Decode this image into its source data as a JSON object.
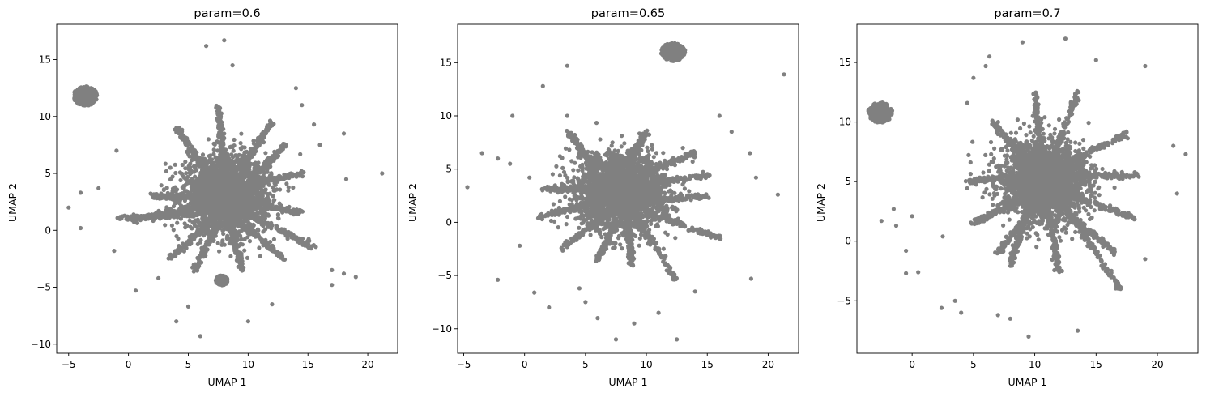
{
  "chart_data": [
    {
      "type": "scatter",
      "title": "param=0.6",
      "xlabel": "UMAP 1",
      "ylabel": "UMAP 2",
      "xlim": [
        -6,
        22.5
      ],
      "ylim": [
        -10.8,
        18.1
      ],
      "xticks": [
        -5,
        0,
        5,
        10,
        15,
        20
      ],
      "yticks": [
        -10,
        -5,
        0,
        5,
        10,
        15
      ],
      "marker_color": "#808080",
      "grid": false,
      "legend": "none",
      "structure": {
        "core": {
          "center": [
            8.2,
            3.2
          ],
          "spread": [
            1.7,
            1.6
          ]
        },
        "islands": [
          {
            "center": [
              -3.6,
              11.8
            ],
            "radius": 1.0
          },
          {
            "center": [
              7.8,
              -4.4
            ],
            "radius": 0.5
          }
        ],
        "arms": [
          {
            "from": [
              9.5,
              4.0
            ],
            "to": [
              14.5,
              5.0
            ]
          },
          {
            "from": [
              7.0,
              4.5
            ],
            "to": [
              4.0,
              9.0
            ]
          },
          {
            "from": [
              6.0,
              2.0
            ],
            "to": [
              0.5,
              1.0
            ]
          },
          {
            "from": [
              9.0,
              1.0
            ],
            "to": [
              13.0,
              -2.5
            ]
          },
          {
            "from": [
              10.0,
              2.5
            ],
            "to": [
              14.5,
              1.5
            ]
          },
          {
            "from": [
              7.0,
              1.0
            ],
            "to": [
              3.5,
              -2.5
            ]
          },
          {
            "from": [
              8.0,
              5.5
            ],
            "to": [
              7.5,
              11.0
            ]
          },
          {
            "from": [
              9.5,
              5.5
            ],
            "to": [
              12.0,
              9.5
            ]
          },
          {
            "from": [
              6.5,
              1.5
            ],
            "to": [
              -1.0,
              1.0
            ]
          },
          {
            "from": [
              10.0,
              1.5
            ],
            "to": [
              15.5,
              -1.5
            ]
          },
          {
            "from": [
              8.5,
              0.5
            ],
            "to": [
              9.5,
              -3.5
            ]
          },
          {
            "from": [
              7.5,
              0.5
            ],
            "to": [
              5.5,
              -3.5
            ]
          },
          {
            "from": [
              6.5,
              3.0
            ],
            "to": [
              2.0,
              3.0
            ]
          },
          {
            "from": [
              9.5,
              3.5
            ],
            "to": [
              13.0,
              7.5
            ]
          }
        ],
        "outliers": [
          [
            -5,
            2
          ],
          [
            -4,
            3.3
          ],
          [
            -2.5,
            3.7
          ],
          [
            -4,
            0.2
          ],
          [
            -1,
            7
          ],
          [
            -1.2,
            -1.8
          ],
          [
            0.6,
            -5.3
          ],
          [
            2.5,
            -4.2
          ],
          [
            3.5,
            5.5
          ],
          [
            4,
            -8
          ],
          [
            5,
            -6.7
          ],
          [
            6,
            -9.3
          ],
          [
            6.5,
            16.2
          ],
          [
            8,
            16.7
          ],
          [
            8.7,
            14.5
          ],
          [
            10,
            -8
          ],
          [
            12,
            -6.5
          ],
          [
            14,
            12.5
          ],
          [
            14.5,
            11
          ],
          [
            15.5,
            9.3
          ],
          [
            16,
            7.5
          ],
          [
            18,
            8.5
          ],
          [
            18.2,
            4.5
          ],
          [
            17,
            -3.5
          ],
          [
            17,
            -4.8
          ],
          [
            18,
            -3.8
          ],
          [
            19,
            -4.1
          ],
          [
            21.2,
            5
          ]
        ]
      }
    },
    {
      "type": "scatter",
      "title": "param=0.65",
      "xlabel": "UMAP 1",
      "ylabel": "UMAP 2",
      "xlim": [
        -5.5,
        22.5
      ],
      "ylim": [
        -12.3,
        18.6
      ],
      "xticks": [
        -5,
        0,
        5,
        10,
        15,
        20
      ],
      "yticks": [
        -10,
        -5,
        0,
        5,
        10,
        15
      ],
      "marker_color": "#808080",
      "grid": false,
      "legend": "none",
      "structure": {
        "core": {
          "center": [
            8.0,
            2.8
          ],
          "spread": [
            1.8,
            1.7
          ]
        },
        "islands": [
          {
            "center": [
              12.2,
              16.0
            ],
            "radius": 1.0
          }
        ],
        "arms": [
          {
            "from": [
              6.0,
              3.0
            ],
            "to": [
              1.5,
              3.2
            ]
          },
          {
            "from": [
              9.5,
              4.5
            ],
            "to": [
              14.0,
              6.5
            ]
          },
          {
            "from": [
              7.0,
              1.0
            ],
            "to": [
              3.0,
              -2.5
            ]
          },
          {
            "from": [
              9.0,
              1.0
            ],
            "to": [
              12.5,
              -5.5
            ]
          },
          {
            "from": [
              6.0,
              5.0
            ],
            "to": [
              3.5,
              8.5
            ]
          },
          {
            "from": [
              8.5,
              5.5
            ],
            "to": [
              10.0,
              8.5
            ]
          },
          {
            "from": [
              10.0,
              2.0
            ],
            "to": [
              15.0,
              2.5
            ]
          },
          {
            "from": [
              7.5,
              0.0
            ],
            "to": [
              6.0,
              -3.5
            ]
          },
          {
            "from": [
              8.5,
              0.5
            ],
            "to": [
              8.8,
              -4.0
            ]
          },
          {
            "from": [
              6.5,
              2.0
            ],
            "to": [
              1.0,
              0.5
            ]
          },
          {
            "from": [
              10.0,
              1.0
            ],
            "to": [
              16.0,
              -1.5
            ]
          },
          {
            "from": [
              9.5,
              3.5
            ],
            "to": [
              15.5,
              4.5
            ]
          },
          {
            "from": [
              7.0,
              5.0
            ],
            "to": [
              4.5,
              6.5
            ]
          }
        ],
        "outliers": [
          [
            -4.7,
            3.3
          ],
          [
            -3.5,
            6.5
          ],
          [
            -2.2,
            6
          ],
          [
            -2.2,
            -5.4
          ],
          [
            -1,
            10
          ],
          [
            -1.2,
            5.5
          ],
          [
            0.4,
            4.2
          ],
          [
            -0.4,
            -2.2
          ],
          [
            1.5,
            12.8
          ],
          [
            0.8,
            -6.6
          ],
          [
            2,
            -8
          ],
          [
            3.5,
            14.7
          ],
          [
            3.5,
            10
          ],
          [
            4.5,
            -6.2
          ],
          [
            5,
            -7.5
          ],
          [
            6,
            -9
          ],
          [
            7.5,
            -11
          ],
          [
            9,
            -9.5
          ],
          [
            11,
            -8.5
          ],
          [
            12.5,
            -11
          ],
          [
            14,
            -6.5
          ],
          [
            16,
            10
          ],
          [
            17,
            8.5
          ],
          [
            18.5,
            6.5
          ],
          [
            19,
            4.2
          ],
          [
            18.6,
            -5.3
          ],
          [
            20.8,
            2.6
          ],
          [
            21.3,
            13.9
          ]
        ]
      }
    },
    {
      "type": "scatter",
      "title": "param=0.7",
      "xlabel": "UMAP 1",
      "ylabel": "UMAP 2",
      "xlim": [
        -4.5,
        23.3
      ],
      "ylim": [
        -9.4,
        18.2
      ],
      "xticks": [
        0,
        5,
        10,
        15,
        20
      ],
      "yticks": [
        -5,
        0,
        5,
        10,
        15
      ],
      "marker_color": "#808080",
      "grid": false,
      "legend": "none",
      "structure": {
        "core": {
          "center": [
            10.8,
            5.0
          ],
          "spread": [
            1.7,
            1.6
          ]
        },
        "islands": [
          {
            "center": [
              -2.6,
              10.8
            ],
            "radius": 1.0
          }
        ],
        "arms": [
          {
            "from": [
              9.0,
              5.5
            ],
            "to": [
              4.5,
              5.0
            ]
          },
          {
            "from": [
              12.5,
              6.5
            ],
            "to": [
              17.5,
              9.0
            ]
          },
          {
            "from": [
              10.0,
              3.0
            ],
            "to": [
              7.0,
              -1.0
            ]
          },
          {
            "from": [
              12.0,
              3.0
            ],
            "to": [
              16.5,
              -1.0
            ]
          },
          {
            "from": [
              10.5,
              7.0
            ],
            "to": [
              10.0,
              12.5
            ]
          },
          {
            "from": [
              11.5,
              7.0
            ],
            "to": [
              13.5,
              12.5
            ]
          },
          {
            "from": [
              12.5,
              4.0
            ],
            "to": [
              18.0,
              2.0
            ]
          },
          {
            "from": [
              9.0,
              3.5
            ],
            "to": [
              5.0,
              1.5
            ]
          },
          {
            "from": [
              11.0,
              3.0
            ],
            "to": [
              12.0,
              -2.5
            ]
          },
          {
            "from": [
              9.5,
              3.0
            ],
            "to": [
              8.0,
              -2.0
            ]
          },
          {
            "from": [
              9.5,
              6.5
            ],
            "to": [
              6.5,
              10.0
            ]
          },
          {
            "from": [
              12.5,
              5.5
            ],
            "to": [
              18.5,
              5.5
            ]
          },
          {
            "from": [
              12.0,
              3.5
            ],
            "to": [
              17.0,
              -4.0
            ]
          }
        ],
        "outliers": [
          [
            -2.5,
            1.7
          ],
          [
            -1.5,
            2.7
          ],
          [
            -1.3,
            1.3
          ],
          [
            -0.5,
            -2.7
          ],
          [
            0,
            2.1
          ],
          [
            -0.5,
            -0.8
          ],
          [
            0.5,
            -2.6
          ],
          [
            2.5,
            0.4
          ],
          [
            2.4,
            -5.6
          ],
          [
            3.5,
            -5
          ],
          [
            4,
            -6
          ],
          [
            4.5,
            11.6
          ],
          [
            5,
            13.7
          ],
          [
            6,
            14.7
          ],
          [
            6.3,
            15.5
          ],
          [
            7,
            -6.2
          ],
          [
            8,
            -6.5
          ],
          [
            9,
            16.7
          ],
          [
            9.5,
            -8
          ],
          [
            12.5,
            17
          ],
          [
            13.5,
            -7.5
          ],
          [
            15,
            15.2
          ],
          [
            17,
            -4
          ],
          [
            19,
            14.7
          ],
          [
            19,
            -1.5
          ],
          [
            21.3,
            8
          ],
          [
            21.6,
            4
          ],
          [
            22.3,
            7.3
          ]
        ]
      }
    }
  ]
}
